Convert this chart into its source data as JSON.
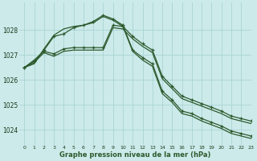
{
  "title": "Graphe pression niveau de la mer (hPa)",
  "bg_color": "#cceaea",
  "grid_color": "#aad4d4",
  "line_color": "#2d5a2d",
  "xlim": [
    -0.5,
    23
  ],
  "ylim": [
    1023.4,
    1029.1
  ],
  "yticks": [
    1024,
    1025,
    1026,
    1027,
    1028
  ],
  "xticks": [
    0,
    1,
    2,
    3,
    4,
    5,
    6,
    7,
    8,
    9,
    10,
    11,
    12,
    13,
    14,
    15,
    16,
    17,
    18,
    19,
    20,
    21,
    22,
    23
  ],
  "series": [
    {
      "y": [
        1026.5,
        1026.75,
        1027.2,
        1027.75,
        1027.85,
        1028.1,
        1028.2,
        1028.35,
        1028.6,
        1028.45,
        1028.2,
        1027.2,
        1026.9,
        1026.65,
        1025.55,
        1025.2,
        1024.75,
        1024.65,
        1024.45,
        1024.3,
        1024.15,
        1023.95,
        1023.85,
        1023.75
      ],
      "marker": true,
      "lw": 0.9
    },
    {
      "y": [
        1026.5,
        1026.65,
        1027.25,
        1027.8,
        1028.05,
        1028.15,
        1028.2,
        1028.3,
        1028.55,
        1028.4,
        1028.15,
        1027.15,
        1026.8,
        1026.55,
        1025.45,
        1025.1,
        1024.65,
        1024.55,
        1024.35,
        1024.2,
        1024.05,
        1023.85,
        1023.75,
        1023.65
      ],
      "marker": false,
      "lw": 0.9
    },
    {
      "y": [
        1026.5,
        1026.8,
        1027.15,
        1027.05,
        1027.25,
        1027.3,
        1027.3,
        1027.3,
        1027.3,
        1028.2,
        1028.15,
        1027.75,
        1027.45,
        1027.2,
        1026.15,
        1025.75,
        1025.35,
        1025.2,
        1025.05,
        1024.9,
        1024.75,
        1024.55,
        1024.45,
        1024.35
      ],
      "marker": true,
      "lw": 0.9
    },
    {
      "y": [
        1026.5,
        1026.7,
        1027.1,
        1026.95,
        1027.15,
        1027.2,
        1027.2,
        1027.2,
        1027.2,
        1028.1,
        1028.05,
        1027.65,
        1027.35,
        1027.1,
        1026.05,
        1025.65,
        1025.25,
        1025.1,
        1024.95,
        1024.8,
        1024.65,
        1024.45,
        1024.35,
        1024.25
      ],
      "marker": false,
      "lw": 0.9
    }
  ]
}
